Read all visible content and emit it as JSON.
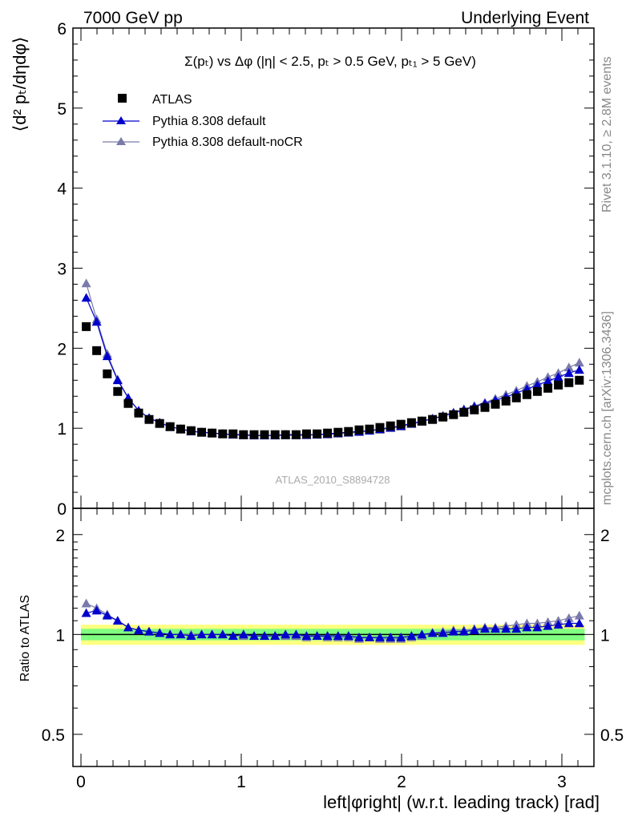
{
  "header": {
    "left": "7000 GeV pp",
    "right": "Underlying Event"
  },
  "plot_title": "Σ(pₜ) vs Δφ (|η| < 2.5, pₜ > 0.5 GeV, pₜ₁ > 5 GeV)",
  "side_labels": {
    "rivet": "Rivet 3.1.10, ≥ 2.8M events",
    "mcplots": "mcplots.cern.ch [arXiv:1306.3436]"
  },
  "analysis_id": "ATLAS_2010_S8894728",
  "colors": {
    "atlas": "#000000",
    "default": "#0000cc",
    "nocr": "#7a7aaa",
    "band_outer": "#ffff80",
    "band_inner": "#80ff80"
  },
  "chart_data": [
    {
      "type": "scatter",
      "title": "Σ(pₜ) vs Δφ (|η| < 2.5, pₜ > 0.5 GeV, pₜ₁ > 5 GeV)",
      "ylabel": "⟨d² pₜ/dηdφ⟩",
      "xlabel": "",
      "xlim": [
        -0.05,
        3.2
      ],
      "ylim": [
        0,
        6
      ],
      "yticks": [
        "0",
        "1",
        "2",
        "3",
        "4",
        "5",
        "6"
      ],
      "legend_position": "top-left",
      "x": [
        0.033,
        0.098,
        0.164,
        0.229,
        0.295,
        0.36,
        0.425,
        0.491,
        0.556,
        0.622,
        0.687,
        0.753,
        0.818,
        0.884,
        0.949,
        1.014,
        1.08,
        1.145,
        1.211,
        1.276,
        1.342,
        1.407,
        1.473,
        1.538,
        1.604,
        1.669,
        1.735,
        1.8,
        1.865,
        1.931,
        1.996,
        2.062,
        2.127,
        2.193,
        2.258,
        2.324,
        2.389,
        2.454,
        2.52,
        2.585,
        2.651,
        2.716,
        2.782,
        2.847,
        2.913,
        2.978,
        3.044,
        3.109
      ],
      "series": [
        {
          "name": "ATLAS",
          "marker": "square",
          "values": [
            2.27,
            1.97,
            1.68,
            1.46,
            1.31,
            1.19,
            1.11,
            1.06,
            1.02,
            0.99,
            0.97,
            0.95,
            0.94,
            0.93,
            0.93,
            0.92,
            0.92,
            0.92,
            0.92,
            0.92,
            0.92,
            0.93,
            0.93,
            0.94,
            0.95,
            0.96,
            0.98,
            0.99,
            1.01,
            1.03,
            1.05,
            1.07,
            1.09,
            1.11,
            1.14,
            1.17,
            1.2,
            1.23,
            1.26,
            1.3,
            1.34,
            1.38,
            1.42,
            1.46,
            1.5,
            1.54,
            1.57,
            1.6
          ]
        },
        {
          "name": "Pythia 8.308 default",
          "marker": "triangle",
          "values": [
            2.63,
            2.33,
            1.9,
            1.6,
            1.38,
            1.22,
            1.13,
            1.07,
            1.02,
            0.99,
            0.96,
            0.95,
            0.94,
            0.93,
            0.92,
            0.92,
            0.91,
            0.91,
            0.91,
            0.92,
            0.92,
            0.92,
            0.92,
            0.93,
            0.94,
            0.95,
            0.96,
            0.97,
            0.99,
            1.01,
            1.03,
            1.06,
            1.09,
            1.12,
            1.15,
            1.19,
            1.23,
            1.27,
            1.31,
            1.35,
            1.39,
            1.44,
            1.49,
            1.54,
            1.59,
            1.64,
            1.69,
            1.73
          ]
        },
        {
          "name": "Pythia 8.308 default-noCR",
          "marker": "triangle",
          "values": [
            2.81,
            2.36,
            1.93,
            1.61,
            1.38,
            1.22,
            1.13,
            1.07,
            1.02,
            0.99,
            0.97,
            0.95,
            0.94,
            0.93,
            0.92,
            0.91,
            0.91,
            0.91,
            0.91,
            0.91,
            0.91,
            0.91,
            0.92,
            0.92,
            0.93,
            0.94,
            0.95,
            0.97,
            0.98,
            1.0,
            1.02,
            1.05,
            1.08,
            1.12,
            1.16,
            1.2,
            1.24,
            1.28,
            1.32,
            1.37,
            1.42,
            1.47,
            1.53,
            1.58,
            1.64,
            1.69,
            1.76,
            1.82
          ]
        }
      ]
    },
    {
      "type": "scatter",
      "title": "",
      "ylabel": "Ratio to ATLAS",
      "xlabel": "left|φright| (w.r.t. leading track) [rad]",
      "xlim": [
        -0.05,
        3.2
      ],
      "ylim": [
        0.4,
        2.4
      ],
      "log_y": true,
      "xticks": [
        "0",
        "1",
        "2",
        "3"
      ],
      "yticks": [
        "0.5",
        "1",
        "2"
      ],
      "reference_band": {
        "inner": [
          0.96,
          1.04
        ],
        "outer": [
          0.93,
          1.07
        ]
      },
      "x": [
        0.033,
        0.098,
        0.164,
        0.229,
        0.295,
        0.36,
        0.425,
        0.491,
        0.556,
        0.622,
        0.687,
        0.753,
        0.818,
        0.884,
        0.949,
        1.014,
        1.08,
        1.145,
        1.211,
        1.276,
        1.342,
        1.407,
        1.473,
        1.538,
        1.604,
        1.669,
        1.735,
        1.8,
        1.865,
        1.931,
        1.996,
        2.062,
        2.127,
        2.193,
        2.258,
        2.324,
        2.389,
        2.454,
        2.52,
        2.585,
        2.651,
        2.716,
        2.782,
        2.847,
        2.913,
        2.978,
        3.044,
        3.109
      ],
      "series": [
        {
          "name": "Pythia 8.308 default",
          "marker": "triangle",
          "values": [
            1.16,
            1.18,
            1.14,
            1.1,
            1.05,
            1.03,
            1.02,
            1.01,
            1.0,
            1.0,
            0.99,
            1.0,
            1.0,
            1.0,
            0.99,
            1.0,
            0.99,
            0.99,
            0.99,
            1.0,
            1.0,
            0.99,
            0.99,
            0.99,
            0.99,
            0.99,
            0.98,
            0.98,
            0.98,
            0.98,
            0.98,
            0.99,
            1.0,
            1.01,
            1.01,
            1.02,
            1.02,
            1.03,
            1.04,
            1.04,
            1.04,
            1.04,
            1.05,
            1.05,
            1.06,
            1.07,
            1.08,
            1.08
          ]
        },
        {
          "name": "Pythia 8.308 default-noCR",
          "marker": "triangle",
          "values": [
            1.24,
            1.2,
            1.15,
            1.1,
            1.05,
            1.03,
            1.02,
            1.01,
            1.0,
            1.0,
            1.0,
            1.0,
            1.0,
            1.0,
            0.99,
            0.99,
            0.99,
            0.99,
            0.99,
            0.99,
            0.99,
            0.98,
            0.99,
            0.98,
            0.98,
            0.98,
            0.97,
            0.98,
            0.97,
            0.97,
            0.97,
            0.98,
            0.99,
            1.01,
            1.02,
            1.03,
            1.03,
            1.04,
            1.05,
            1.05,
            1.06,
            1.07,
            1.08,
            1.08,
            1.09,
            1.1,
            1.12,
            1.14
          ]
        }
      ]
    }
  ]
}
